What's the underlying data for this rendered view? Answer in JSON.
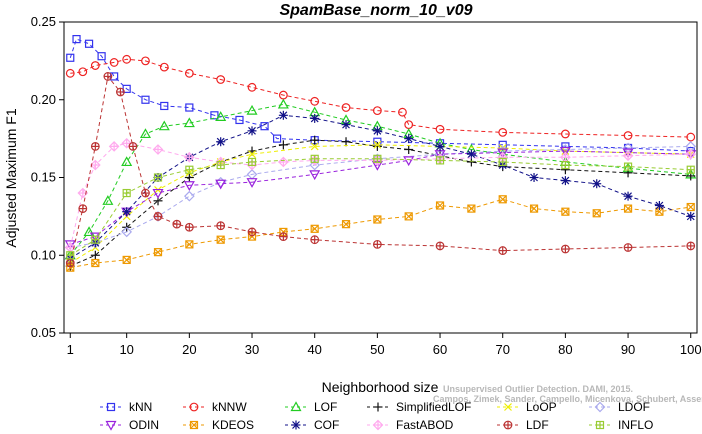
{
  "chart_data": {
    "type": "line",
    "title": "SpamBase_norm_10_v09",
    "xlabel": "Neighborhood size",
    "ylabel": "Adjusted Maximum F1",
    "xlim": [
      0,
      101
    ],
    "ylim": [
      0.05,
      0.25
    ],
    "xticks": [
      "1",
      "10",
      "20",
      "30",
      "40",
      "50",
      "60",
      "70",
      "80",
      "90",
      "100"
    ],
    "yticks": [
      "0.05",
      "0.10",
      "0.15",
      "0.20",
      "0.25"
    ],
    "legend_position": "bottom",
    "watermark": "Campos, Zimek, Sander, Campello, Micenkova, Schubert, Assent, Houle",
    "watermark_behind": "Unsupervised Outlier Detection. DAMI, 2015.",
    "series": [
      {
        "name": "kNN",
        "color": "#3333ee",
        "marker": "square",
        "dash": "4,3",
        "points": [
          [
            1,
            0.227
          ],
          [
            2,
            0.239
          ],
          [
            4,
            0.236
          ],
          [
            6,
            0.228
          ],
          [
            8,
            0.215
          ],
          [
            10,
            0.207
          ],
          [
            13,
            0.2
          ],
          [
            16,
            0.196
          ],
          [
            20,
            0.195
          ],
          [
            24,
            0.19
          ],
          [
            28,
            0.187
          ],
          [
            32,
            0.183
          ],
          [
            34,
            0.175
          ],
          [
            40,
            0.174
          ],
          [
            50,
            0.173
          ],
          [
            60,
            0.172
          ],
          [
            70,
            0.171
          ],
          [
            80,
            0.17
          ],
          [
            90,
            0.169
          ],
          [
            100,
            0.167
          ]
        ]
      },
      {
        "name": "kNNW",
        "color": "#ee2222",
        "marker": "circle",
        "dash": "4,3",
        "points": [
          [
            1,
            0.217
          ],
          [
            3,
            0.218
          ],
          [
            5,
            0.222
          ],
          [
            8,
            0.224
          ],
          [
            10,
            0.226
          ],
          [
            13,
            0.225
          ],
          [
            16,
            0.221
          ],
          [
            20,
            0.217
          ],
          [
            25,
            0.213
          ],
          [
            30,
            0.208
          ],
          [
            35,
            0.203
          ],
          [
            40,
            0.199
          ],
          [
            45,
            0.195
          ],
          [
            50,
            0.193
          ],
          [
            54,
            0.192
          ],
          [
            55,
            0.184
          ],
          [
            60,
            0.181
          ],
          [
            70,
            0.179
          ],
          [
            80,
            0.178
          ],
          [
            90,
            0.177
          ],
          [
            100,
            0.176
          ]
        ]
      },
      {
        "name": "LOF",
        "color": "#22cc22",
        "marker": "triangle-up",
        "dash": "4,3",
        "points": [
          [
            1,
            0.1
          ],
          [
            4,
            0.115
          ],
          [
            7,
            0.135
          ],
          [
            10,
            0.16
          ],
          [
            13,
            0.178
          ],
          [
            16,
            0.183
          ],
          [
            20,
            0.185
          ],
          [
            25,
            0.189
          ],
          [
            30,
            0.193
          ],
          [
            35,
            0.197
          ],
          [
            40,
            0.192
          ],
          [
            45,
            0.187
          ],
          [
            50,
            0.183
          ],
          [
            55,
            0.178
          ],
          [
            60,
            0.172
          ],
          [
            65,
            0.168
          ],
          [
            70,
            0.165
          ],
          [
            80,
            0.16
          ],
          [
            90,
            0.156
          ],
          [
            100,
            0.152
          ]
        ]
      },
      {
        "name": "SimplifiedLOF",
        "color": "#111111",
        "marker": "plus",
        "dash": "4,3",
        "points": [
          [
            1,
            0.093
          ],
          [
            5,
            0.1
          ],
          [
            10,
            0.118
          ],
          [
            15,
            0.135
          ],
          [
            20,
            0.15
          ],
          [
            25,
            0.16
          ],
          [
            30,
            0.167
          ],
          [
            35,
            0.171
          ],
          [
            40,
            0.174
          ],
          [
            45,
            0.173
          ],
          [
            50,
            0.17
          ],
          [
            55,
            0.168
          ],
          [
            60,
            0.164
          ],
          [
            65,
            0.16
          ],
          [
            70,
            0.157
          ],
          [
            80,
            0.155
          ],
          [
            90,
            0.153
          ],
          [
            100,
            0.151
          ]
        ]
      },
      {
        "name": "LoOP",
        "color": "#eeee00",
        "marker": "x",
        "dash": "4,3",
        "points": [
          [
            1,
            0.095
          ],
          [
            5,
            0.105
          ],
          [
            10,
            0.125
          ],
          [
            15,
            0.142
          ],
          [
            20,
            0.153
          ],
          [
            25,
            0.16
          ],
          [
            30,
            0.165
          ],
          [
            40,
            0.17
          ],
          [
            50,
            0.171
          ],
          [
            60,
            0.17
          ],
          [
            70,
            0.169
          ],
          [
            80,
            0.167
          ],
          [
            90,
            0.166
          ],
          [
            100,
            0.165
          ]
        ]
      },
      {
        "name": "LDOF",
        "color": "#aaaaee",
        "marker": "diamond",
        "dash": "4,3",
        "points": [
          [
            1,
            0.105
          ],
          [
            5,
            0.108
          ],
          [
            10,
            0.115
          ],
          [
            15,
            0.125
          ],
          [
            20,
            0.138
          ],
          [
            25,
            0.147
          ],
          [
            30,
            0.152
          ],
          [
            40,
            0.158
          ],
          [
            50,
            0.162
          ],
          [
            60,
            0.165
          ],
          [
            70,
            0.167
          ],
          [
            80,
            0.168
          ],
          [
            90,
            0.169
          ],
          [
            100,
            0.17
          ]
        ]
      },
      {
        "name": "ODIN",
        "color": "#9922dd",
        "marker": "triangle-down",
        "dash": "4,3",
        "points": [
          [
            1,
            0.107
          ],
          [
            5,
            0.112
          ],
          [
            10,
            0.128
          ],
          [
            15,
            0.14
          ],
          [
            20,
            0.145
          ],
          [
            25,
            0.146
          ],
          [
            30,
            0.147
          ],
          [
            40,
            0.152
          ],
          [
            50,
            0.158
          ],
          [
            55,
            0.161
          ],
          [
            60,
            0.165
          ],
          [
            70,
            0.166
          ],
          [
            80,
            0.167
          ],
          [
            90,
            0.166
          ],
          [
            100,
            0.165
          ]
        ]
      },
      {
        "name": "KDEOS",
        "color": "#ee9900",
        "marker": "box-x",
        "dash": "4,3",
        "points": [
          [
            1,
            0.092
          ],
          [
            5,
            0.095
          ],
          [
            10,
            0.097
          ],
          [
            15,
            0.102
          ],
          [
            20,
            0.107
          ],
          [
            25,
            0.11
          ],
          [
            30,
            0.112
          ],
          [
            35,
            0.115
          ],
          [
            40,
            0.117
          ],
          [
            45,
            0.12
          ],
          [
            50,
            0.123
          ],
          [
            55,
            0.125
          ],
          [
            60,
            0.132
          ],
          [
            65,
            0.13
          ],
          [
            70,
            0.136
          ],
          [
            75,
            0.13
          ],
          [
            80,
            0.128
          ],
          [
            85,
            0.127
          ],
          [
            90,
            0.13
          ],
          [
            95,
            0.128
          ],
          [
            100,
            0.131
          ]
        ]
      },
      {
        "name": "COF",
        "color": "#111188",
        "marker": "asterisk",
        "dash": "4,3",
        "points": [
          [
            1,
            0.098
          ],
          [
            5,
            0.108
          ],
          [
            10,
            0.128
          ],
          [
            15,
            0.15
          ],
          [
            20,
            0.163
          ],
          [
            25,
            0.173
          ],
          [
            30,
            0.18
          ],
          [
            35,
            0.19
          ],
          [
            40,
            0.188
          ],
          [
            45,
            0.184
          ],
          [
            50,
            0.18
          ],
          [
            55,
            0.175
          ],
          [
            60,
            0.17
          ],
          [
            65,
            0.165
          ],
          [
            70,
            0.158
          ],
          [
            75,
            0.15
          ],
          [
            80,
            0.148
          ],
          [
            85,
            0.146
          ],
          [
            90,
            0.138
          ],
          [
            95,
            0.132
          ],
          [
            100,
            0.125
          ]
        ]
      },
      {
        "name": "FastABOD",
        "color": "#ffaaee",
        "marker": "diamond-cross",
        "dash": "4,3",
        "points": [
          [
            1,
            0.105
          ],
          [
            3,
            0.14
          ],
          [
            5,
            0.158
          ],
          [
            8,
            0.17
          ],
          [
            10,
            0.172
          ],
          [
            15,
            0.168
          ],
          [
            20,
            0.163
          ],
          [
            25,
            0.16
          ],
          [
            30,
            0.158
          ],
          [
            35,
            0.16
          ],
          [
            40,
            0.161
          ],
          [
            50,
            0.161
          ],
          [
            60,
            0.162
          ],
          [
            70,
            0.163
          ],
          [
            80,
            0.163
          ],
          [
            90,
            0.164
          ],
          [
            100,
            0.165
          ]
        ]
      },
      {
        "name": "LDF",
        "color": "#bb3333",
        "marker": "circle-plus",
        "dash": "4,3",
        "points": [
          [
            1,
            0.095
          ],
          [
            3,
            0.13
          ],
          [
            5,
            0.17
          ],
          [
            7,
            0.215
          ],
          [
            9,
            0.205
          ],
          [
            11,
            0.17
          ],
          [
            13,
            0.14
          ],
          [
            15,
            0.125
          ],
          [
            18,
            0.12
          ],
          [
            20,
            0.118
          ],
          [
            25,
            0.119
          ],
          [
            30,
            0.115
          ],
          [
            35,
            0.112
          ],
          [
            40,
            0.11
          ],
          [
            50,
            0.107
          ],
          [
            60,
            0.106
          ],
          [
            70,
            0.103
          ],
          [
            80,
            0.104
          ],
          [
            90,
            0.105
          ],
          [
            100,
            0.106
          ]
        ]
      },
      {
        "name": "INFLO",
        "color": "#99cc33",
        "marker": "box-plus",
        "dash": "4,3",
        "points": [
          [
            1,
            0.1
          ],
          [
            5,
            0.11
          ],
          [
            10,
            0.14
          ],
          [
            15,
            0.15
          ],
          [
            20,
            0.155
          ],
          [
            25,
            0.158
          ],
          [
            30,
            0.16
          ],
          [
            40,
            0.162
          ],
          [
            50,
            0.162
          ],
          [
            60,
            0.161
          ],
          [
            70,
            0.16
          ],
          [
            80,
            0.158
          ],
          [
            90,
            0.157
          ],
          [
            100,
            0.155
          ]
        ]
      }
    ]
  }
}
